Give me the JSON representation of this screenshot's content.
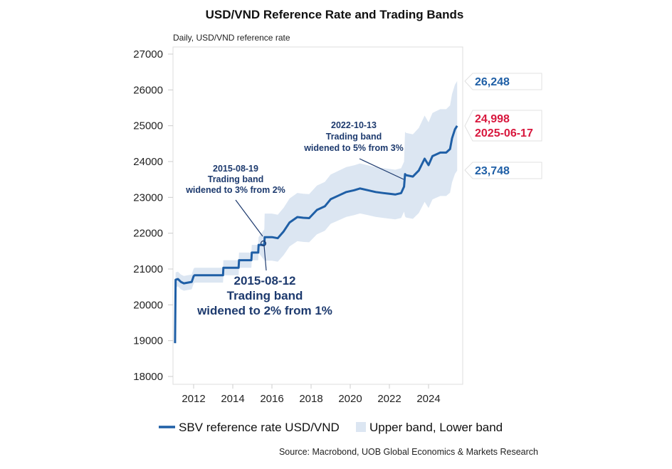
{
  "chart_data": {
    "type": "line",
    "title": "USD/VND Reference Rate and Trading Bands",
    "subtitle": "Daily, USD/VND reference rate",
    "xlabel": "",
    "ylabel": "",
    "xlim": [
      2011.0,
      2025.8
    ],
    "ylim": [
      18000,
      27000
    ],
    "y_ticks": [
      18000,
      19000,
      20000,
      21000,
      22000,
      23000,
      24000,
      25000,
      26000,
      27000
    ],
    "x_ticks": [
      2012,
      2014,
      2016,
      2018,
      2020,
      2022,
      2024
    ],
    "grid": false,
    "legend_position": "bottom",
    "series": [
      {
        "name": "SBV reference rate USD/VND",
        "color": "#1f5fa6",
        "x": [
          2011.05,
          2011.08,
          2011.2,
          2011.35,
          2011.5,
          2011.7,
          2011.9,
          2012.0,
          2012.05,
          2013.5,
          2013.52,
          2014.3,
          2014.32,
          2014.95,
          2014.97,
          2015.3,
          2015.32,
          2015.61,
          2015.63,
          2016.0,
          2016.3,
          2016.6,
          2016.9,
          2017.3,
          2017.6,
          2017.9,
          2018.3,
          2018.7,
          2019.0,
          2019.4,
          2019.8,
          2020.2,
          2020.5,
          2020.9,
          2021.3,
          2021.7,
          2022.0,
          2022.3,
          2022.6,
          2022.75,
          2022.8,
          2022.85,
          2023.2,
          2023.5,
          2023.8,
          2024.0,
          2024.2,
          2024.4,
          2024.6,
          2024.9,
          2025.1,
          2025.2,
          2025.35,
          2025.46
        ],
        "values": [
          18930,
          20700,
          20720,
          20640,
          20600,
          20620,
          20640,
          20800,
          20828,
          20828,
          21036,
          21036,
          21246,
          21246,
          21458,
          21458,
          21673,
          21673,
          21890,
          21890,
          21860,
          22050,
          22300,
          22450,
          22430,
          22420,
          22650,
          22750,
          22950,
          23050,
          23150,
          23200,
          23250,
          23200,
          23150,
          23120,
          23100,
          23080,
          23120,
          23300,
          23650,
          23620,
          23580,
          23750,
          24080,
          23900,
          24150,
          24200,
          24250,
          24250,
          24350,
          24650,
          24900,
          24998
        ]
      },
      {
        "name": "Upper band, Lower band",
        "color": "#dce6f2",
        "band_widths_pct": [
          1,
          2,
          3,
          5
        ]
      }
    ],
    "end_labels": {
      "upper": "26,248",
      "current": "24,998",
      "current_date": "2025-06-17",
      "lower": "23,748"
    },
    "annotations": [
      {
        "lines": [
          "2015-08-19",
          "Trading band",
          "widened to 3% from 2%"
        ]
      },
      {
        "lines": [
          "2015-08-12",
          "Trading band",
          "widened to 2% from 1%"
        ]
      },
      {
        "lines": [
          "2022-10-13",
          "Trading band",
          "widened to 5% from 3%"
        ]
      }
    ],
    "legend": [
      "SBV reference rate USD/VND",
      "Upper band, Lower band"
    ],
    "source": "Source: Macrobond, UOB Global Economics & Markets Research"
  },
  "colors": {
    "line": "#1f5fa6",
    "band": "#dce6f2",
    "annotation": "#1d3a6e",
    "highlight_red": "#d8173d",
    "label_blue": "#1f5fa6"
  }
}
